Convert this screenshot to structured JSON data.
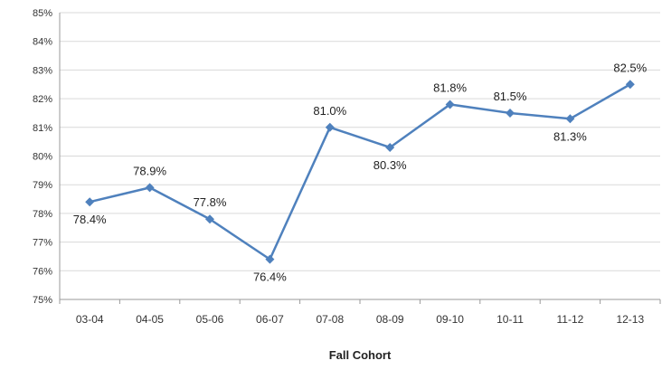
{
  "chart_data": {
    "type": "line",
    "title": "",
    "xlabel": "Fall Cohort",
    "ylabel": "",
    "categories": [
      "03-04",
      "04-05",
      "05-06",
      "06-07",
      "07-08",
      "08-09",
      "09-10",
      "10-11",
      "11-12",
      "12-13"
    ],
    "series": [
      {
        "values": [
          78.4,
          78.9,
          77.8,
          76.4,
          81.0,
          80.3,
          81.8,
          81.5,
          81.3,
          82.5
        ],
        "color": "#4f81bd"
      }
    ],
    "data_labels": [
      "78.4%",
      "78.9%",
      "77.8%",
      "76.4%",
      "81.0%",
      "80.3%",
      "81.8%",
      "81.5%",
      "81.3%",
      "82.5%"
    ],
    "y_ticks": [
      "75%",
      "76%",
      "77%",
      "78%",
      "79%",
      "80%",
      "81%",
      "82%",
      "83%",
      "84%",
      "85%"
    ],
    "ylim": [
      75,
      85
    ],
    "grid": true,
    "legend": "none"
  }
}
